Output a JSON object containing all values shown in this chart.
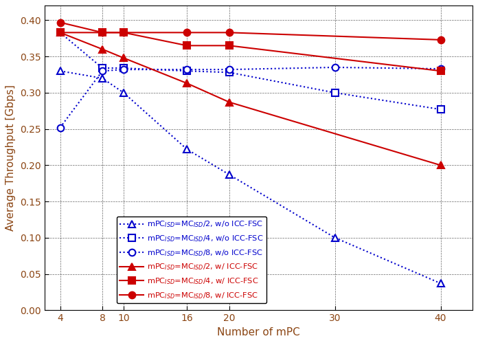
{
  "x": [
    4,
    8,
    10,
    16,
    20,
    30,
    40
  ],
  "series_order": [
    "mpc_half_wo",
    "mpc_quarter_wo",
    "mpc_eighth_wo",
    "mpc_half_w",
    "mpc_quarter_w",
    "mpc_eighth_w"
  ],
  "series": {
    "mpc_half_wo": {
      "label": "mPC$_{ISD}$=MC$_{ISD}$/2, w/o ICC-FSC",
      "color": "#0000cc",
      "linestyle": "dotted",
      "marker": "^",
      "filled": false,
      "y": [
        0.33,
        0.32,
        0.3,
        0.222,
        0.187,
        0.1,
        0.037
      ]
    },
    "mpc_quarter_wo": {
      "label": "mPC$_{ISD}$=MC$_{ISD}$/4, w/o ICC-FSC",
      "color": "#0000cc",
      "linestyle": "dotted",
      "marker": "s",
      "filled": false,
      "y": [
        0.383,
        0.334,
        0.334,
        0.33,
        0.328,
        0.3,
        0.277
      ]
    },
    "mpc_eighth_wo": {
      "label": "mPC$_{ISD}$=MC$_{ISD}$/8, w/o ICC-FSC",
      "color": "#0000cc",
      "linestyle": "dotted",
      "marker": "o",
      "filled": false,
      "y": [
        0.252,
        0.33,
        0.332,
        0.332,
        0.332,
        0.335,
        0.333
      ]
    },
    "mpc_half_w": {
      "label": "mPC$_{ISD}$=MC$_{ISD}$/2, w/ ICC-FSC",
      "color": "#cc0000",
      "linestyle": "solid",
      "marker": "^",
      "filled": true,
      "y": [
        0.383,
        0.36,
        0.348,
        0.313,
        0.287,
        null,
        0.2
      ]
    },
    "mpc_quarter_w": {
      "label": "mPC$_{ISD}$=MC$_{ISD}$/4, w/ ICC-FSC",
      "color": "#cc0000",
      "linestyle": "solid",
      "marker": "s",
      "filled": true,
      "y": [
        0.383,
        0.383,
        0.383,
        0.365,
        0.365,
        null,
        0.33
      ]
    },
    "mpc_eighth_w": {
      "label": "mPC$_{ISD}$=MC$_{ISD}$/8, w/ ICC-FSC",
      "color": "#cc0000",
      "linestyle": "solid",
      "marker": "o",
      "filled": true,
      "y": [
        0.397,
        0.383,
        0.383,
        0.383,
        0.383,
        null,
        0.373
      ]
    }
  },
  "xlabel": "Number of mPC",
  "ylabel": "Average Throughput [Gbps]",
  "xlim": [
    2.5,
    43
  ],
  "ylim": [
    0,
    0.42
  ],
  "xticks": [
    4,
    8,
    10,
    16,
    20,
    30,
    40
  ],
  "yticks": [
    0.0,
    0.05,
    0.1,
    0.15,
    0.2,
    0.25,
    0.3,
    0.35,
    0.4
  ],
  "grid_color": "#000000",
  "figsize": [
    6.96,
    4.99
  ],
  "dpi": 100
}
